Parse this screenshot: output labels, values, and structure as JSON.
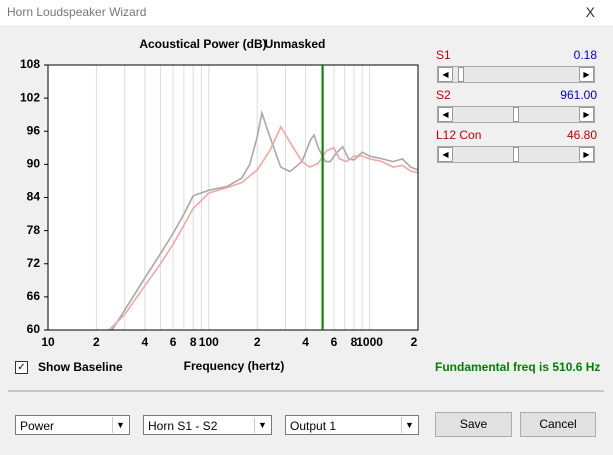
{
  "window": {
    "title": "Horn Loudspeaker Wizard",
    "close": "X"
  },
  "chart_data": {
    "type": "line",
    "title": "Acoustical Power (dB)",
    "subtitle": "Unmasked",
    "x_label": "Frequency (hertz)",
    "xscale": "log",
    "xlim": [
      10,
      2000
    ],
    "ylim": [
      60,
      108
    ],
    "yticks": [
      60,
      66,
      72,
      78,
      84,
      90,
      96,
      102,
      108
    ],
    "xticks": [
      10,
      {
        "value": 20,
        "label": "2"
      },
      {
        "value": 40,
        "label": "4"
      },
      {
        "value": 60,
        "label": "6"
      },
      {
        "value": 80,
        "label": "8"
      },
      100,
      {
        "value": 200,
        "label": "2"
      },
      {
        "value": 400,
        "label": "4"
      },
      {
        "value": 600,
        "label": "6"
      },
      {
        "value": 800,
        "label": "8"
      },
      1000,
      {
        "value": 2000,
        "label": "2"
      }
    ],
    "xminorticks": [
      30,
      50,
      70,
      90,
      300,
      500,
      700,
      900
    ],
    "grid": true,
    "series": [
      {
        "color": "#a8a8a8",
        "x": [
          25,
          30,
          40,
          50,
          60,
          70,
          80,
          100,
          130,
          160,
          180,
          200,
          214,
          240,
          280,
          320,
          380,
          430,
          451,
          480,
          530,
          570,
          620,
          680,
          740,
          800,
          900,
          1000,
          1200,
          1400,
          1600,
          1800,
          2000
        ],
        "values": [
          60,
          63.6,
          69.4,
          73.8,
          77.5,
          81,
          84.3,
          85.3,
          86,
          87.5,
          90,
          95,
          99.3,
          95,
          89.5,
          88.7,
          90.5,
          94.5,
          95.3,
          93,
          90.5,
          90.5,
          92,
          93.2,
          91,
          90.8,
          92.2,
          91.5,
          91,
          90.5,
          91,
          89.5,
          89
        ]
      },
      {
        "color": "#f0a8a0",
        "x": [
          24,
          30,
          40,
          50,
          60,
          70,
          80,
          100,
          130,
          160,
          200,
          240,
          281,
          320,
          380,
          425,
          480,
          540,
          600,
          650,
          720,
          800,
          900,
          1000,
          1200,
          1400,
          1600,
          1800,
          2000
        ],
        "values": [
          60,
          62.8,
          68,
          72,
          75.5,
          79,
          82,
          84.8,
          85.8,
          86.7,
          89,
          92.5,
          96.8,
          94,
          90.5,
          89.5,
          90.2,
          92.5,
          93,
          91,
          90.5,
          91.5,
          91.5,
          91,
          90.5,
          89.5,
          89.8,
          88.8,
          88.5
        ]
      }
    ],
    "marker": {
      "x": 510.6,
      "color": "#008000"
    }
  },
  "sliders": [
    {
      "label": "S1",
      "value": "0.18",
      "label_color": "#c00000",
      "value_color": "#0000c0"
    },
    {
      "label": "S2",
      "value": "961.00",
      "label_color": "#c00000",
      "value_color": "#0000c0"
    },
    {
      "label": "L12  Con",
      "value": "46.80",
      "label_color": "#c00000",
      "value_color": "#c00000"
    }
  ],
  "controls": {
    "show_baseline": {
      "label": "Show Baseline",
      "checked": true
    },
    "fundamental": "Fundamental freq is 510.6 Hz",
    "dropdowns": [
      "Power",
      "Horn S1 - S2",
      "Output 1"
    ],
    "buttons": [
      "Save",
      "Cancel"
    ]
  }
}
